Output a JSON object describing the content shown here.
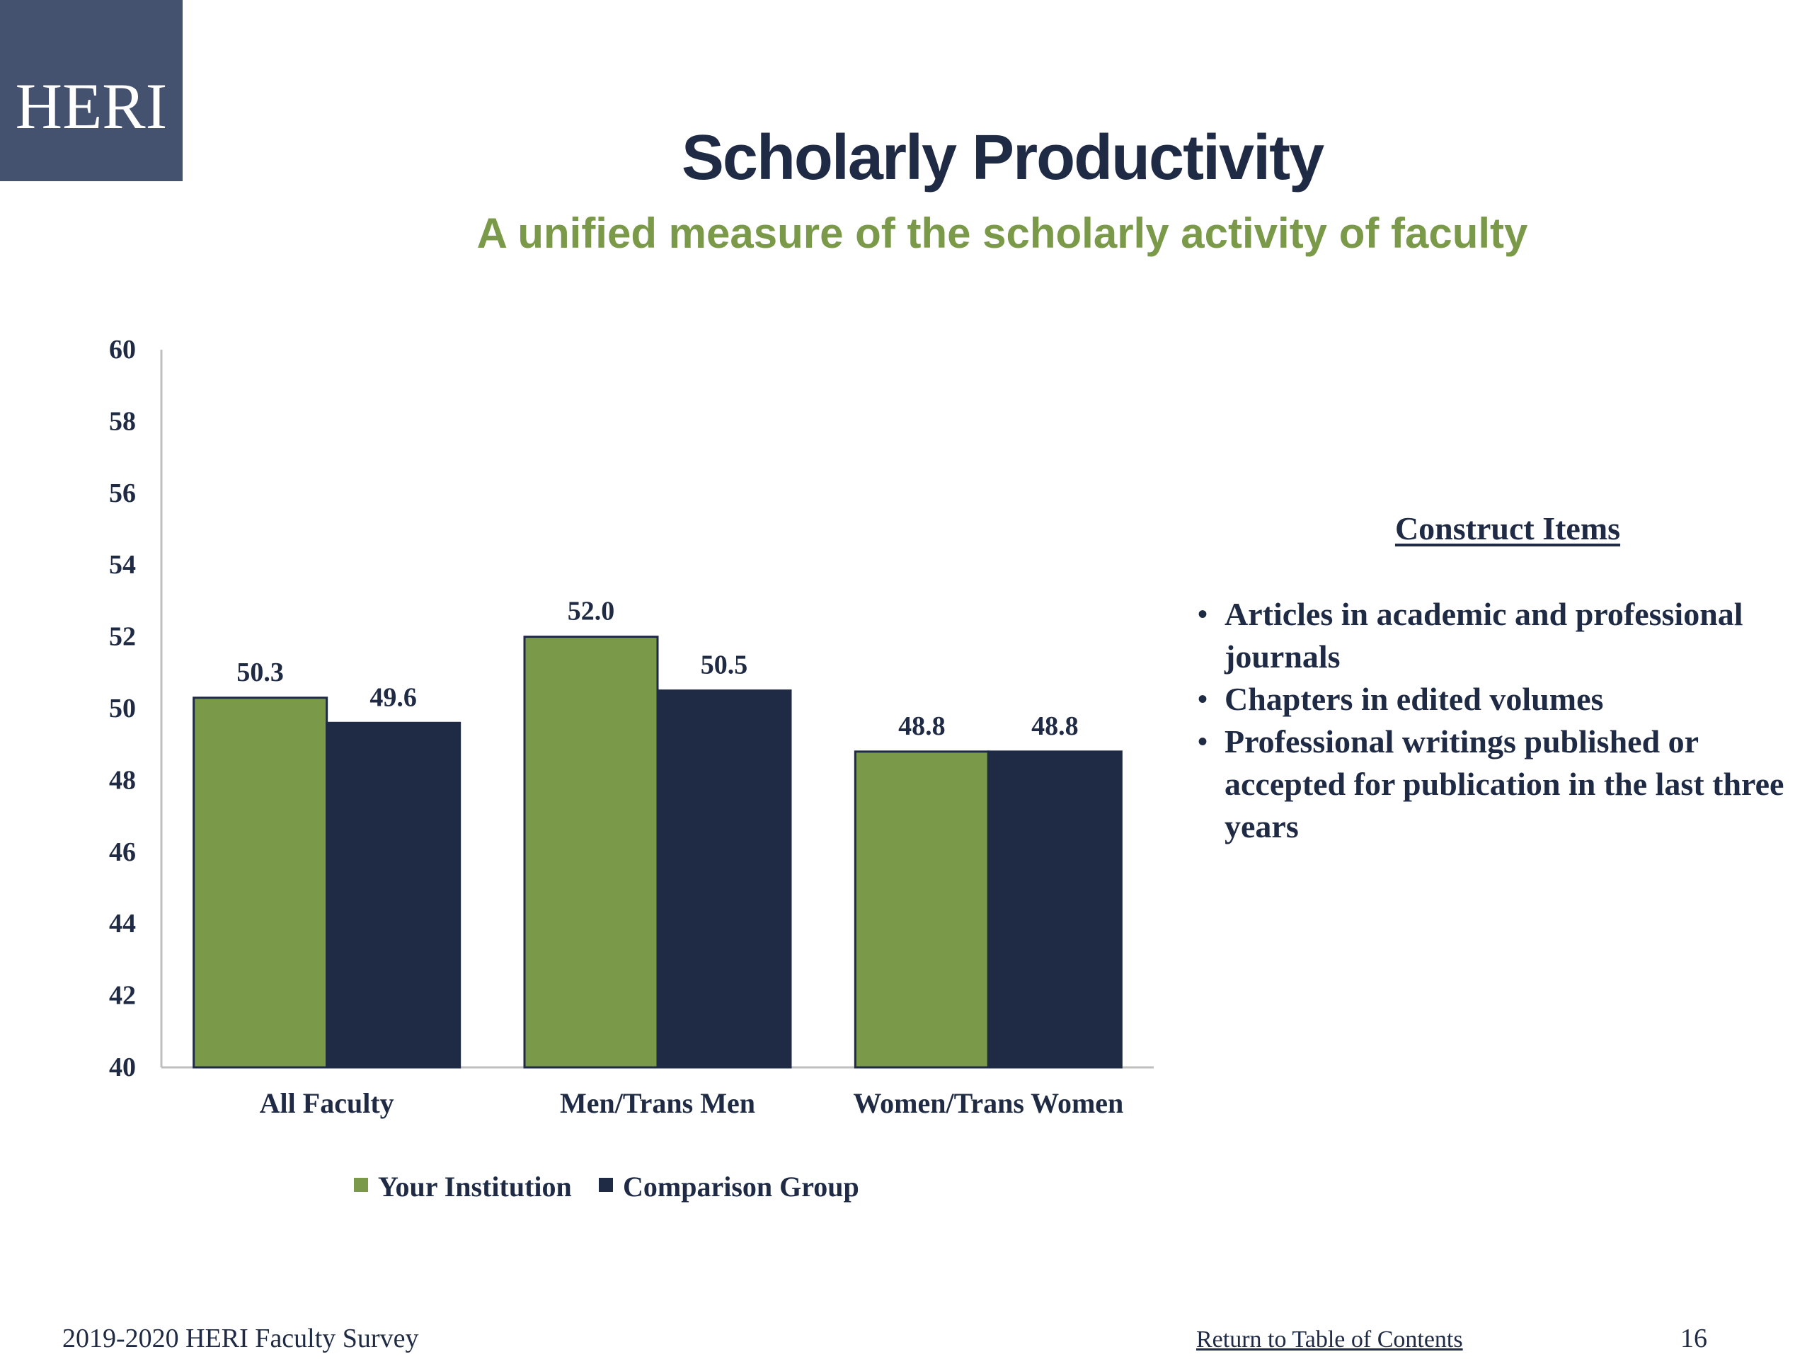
{
  "logo": {
    "text": "HERI"
  },
  "header": {
    "title": "Scholarly Productivity",
    "subtitle": "A unified measure of the scholarly activity of faculty"
  },
  "chart_data": {
    "type": "bar",
    "title": "",
    "xlabel": "",
    "ylabel": "",
    "categories": [
      "All Faculty",
      "Men/Trans Men",
      "Women/Trans Women"
    ],
    "series": [
      {
        "name": "Your Institution",
        "values": [
          50.3,
          52.0,
          48.8
        ],
        "labels": [
          "50.3",
          "52.0",
          "48.8"
        ],
        "color": "#7a9a49"
      },
      {
        "name": "Comparison Group",
        "values": [
          49.6,
          50.5,
          48.8
        ],
        "labels": [
          "49.6",
          "50.5",
          "48.8"
        ],
        "color": "#1f2a44"
      }
    ],
    "ylim": [
      40,
      60
    ],
    "yticks": [
      "40",
      "42",
      "44",
      "46",
      "48",
      "50",
      "52",
      "54",
      "56",
      "58",
      "60"
    ],
    "grid": false,
    "legend_position": "bottom"
  },
  "construct": {
    "heading": "Construct Items",
    "items": [
      "Articles in academic and professional journals",
      "Chapters in edited volumes",
      "Professional writings published or accepted for publication in the last three years"
    ]
  },
  "footer": {
    "survey": "2019-2020 HERI Faculty Survey",
    "toc_link": "Return to Table of Contents",
    "page_number": "16"
  }
}
